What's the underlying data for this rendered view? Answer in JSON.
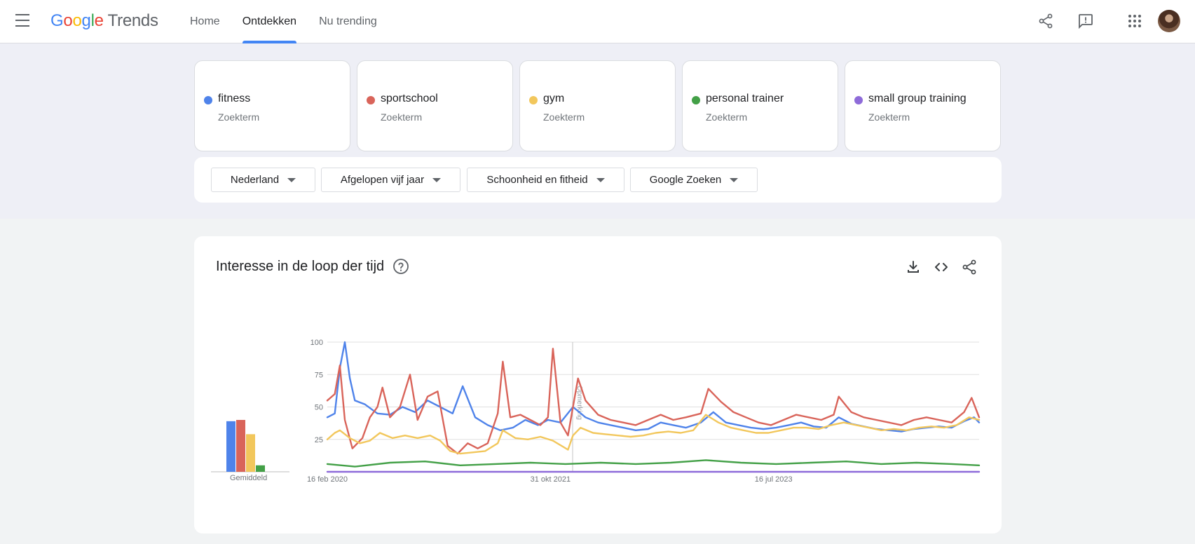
{
  "app": {
    "logo_google": [
      "G",
      "o",
      "o",
      "g",
      "l",
      "e"
    ],
    "logo_trends": "Trends"
  },
  "nav": [
    {
      "label": "Home",
      "active": false
    },
    {
      "label": "Ontdekken",
      "active": true
    },
    {
      "label": "Nu trending",
      "active": false
    }
  ],
  "terms": [
    {
      "name": "fitness",
      "type": "Zoekterm",
      "color": "#4f83ea"
    },
    {
      "name": "sportschool",
      "type": "Zoekterm",
      "color": "#d9645a"
    },
    {
      "name": "gym",
      "type": "Zoekterm",
      "color": "#f2c75c"
    },
    {
      "name": "personal trainer",
      "type": "Zoekterm",
      "color": "#43a047"
    },
    {
      "name": "small group training",
      "type": "Zoekterm",
      "color": "#8e6bd9"
    }
  ],
  "filters": [
    {
      "label": "Nederland"
    },
    {
      "label": "Afgelopen vijf jaar"
    },
    {
      "label": "Schoonheid en fitheid"
    },
    {
      "label": "Google Zoeken"
    }
  ],
  "chart_card": {
    "title": "Interesse in de loop der tijd",
    "average_label": "Gemiddeld"
  },
  "chart_data": {
    "type": "line",
    "title": "Interesse in de loop der tijd",
    "xlabel": "",
    "ylabel": "",
    "x_range": [
      "2020-02-16",
      "2025-02-09"
    ],
    "x_ticks": [
      {
        "date": "2020-02-16",
        "label": "16 feb 2020"
      },
      {
        "date": "2021-10-31",
        "label": "31 okt 2021"
      },
      {
        "date": "2023-07-16",
        "label": "16 jul 2023"
      }
    ],
    "y_ticks": [
      25,
      50,
      75,
      100
    ],
    "ylim": [
      0,
      100
    ],
    "grid": true,
    "annotation_line": {
      "date": "2022-01-01",
      "label": "Opmerking"
    },
    "series": [
      {
        "name": "fitness",
        "color": "#4f83ea",
        "average": 39,
        "points": [
          [
            "2020-02-16",
            42
          ],
          [
            "2020-03-08",
            45
          ],
          [
            "2020-03-22",
            80
          ],
          [
            "2020-04-05",
            100
          ],
          [
            "2020-04-19",
            72
          ],
          [
            "2020-05-03",
            55
          ],
          [
            "2020-05-31",
            52
          ],
          [
            "2020-07-05",
            45
          ],
          [
            "2020-08-09",
            44
          ],
          [
            "2020-09-13",
            50
          ],
          [
            "2020-10-18",
            46
          ],
          [
            "2020-11-22",
            55
          ],
          [
            "2020-12-27",
            50
          ],
          [
            "2021-01-31",
            45
          ],
          [
            "2021-02-28",
            66
          ],
          [
            "2021-04-04",
            42
          ],
          [
            "2021-05-09",
            36
          ],
          [
            "2021-06-13",
            32
          ],
          [
            "2021-07-18",
            34
          ],
          [
            "2021-08-22",
            40
          ],
          [
            "2021-09-26",
            36
          ],
          [
            "2021-10-24",
            40
          ],
          [
            "2021-11-28",
            38
          ],
          [
            "2022-01-02",
            50
          ],
          [
            "2022-02-06",
            42
          ],
          [
            "2022-03-13",
            38
          ],
          [
            "2022-04-17",
            36
          ],
          [
            "2022-05-22",
            34
          ],
          [
            "2022-06-26",
            32
          ],
          [
            "2022-07-31",
            33
          ],
          [
            "2022-09-04",
            38
          ],
          [
            "2022-10-09",
            36
          ],
          [
            "2022-11-13",
            34
          ],
          [
            "2022-12-25",
            38
          ],
          [
            "2023-01-29",
            46
          ],
          [
            "2023-03-05",
            38
          ],
          [
            "2023-04-09",
            36
          ],
          [
            "2023-05-14",
            34
          ],
          [
            "2023-06-18",
            33
          ],
          [
            "2023-07-23",
            34
          ],
          [
            "2023-08-27",
            36
          ],
          [
            "2023-10-01",
            38
          ],
          [
            "2023-11-05",
            35
          ],
          [
            "2023-12-10",
            34
          ],
          [
            "2024-01-14",
            42
          ],
          [
            "2024-02-18",
            37
          ],
          [
            "2024-03-24",
            35
          ],
          [
            "2024-04-28",
            33
          ],
          [
            "2024-06-02",
            32
          ],
          [
            "2024-07-07",
            31
          ],
          [
            "2024-08-11",
            33
          ],
          [
            "2024-09-15",
            34
          ],
          [
            "2024-10-20",
            35
          ],
          [
            "2024-11-24",
            34
          ],
          [
            "2024-12-29",
            39
          ],
          [
            "2025-01-26",
            42
          ],
          [
            "2025-02-09",
            38
          ]
        ]
      },
      {
        "name": "sportschool",
        "color": "#d9645a",
        "average": 40,
        "points": [
          [
            "2020-02-16",
            55
          ],
          [
            "2020-03-08",
            60
          ],
          [
            "2020-03-22",
            82
          ],
          [
            "2020-04-05",
            40
          ],
          [
            "2020-04-26",
            18
          ],
          [
            "2020-05-24",
            26
          ],
          [
            "2020-06-14",
            42
          ],
          [
            "2020-07-05",
            50
          ],
          [
            "2020-07-19",
            65
          ],
          [
            "2020-08-09",
            42
          ],
          [
            "2020-09-06",
            50
          ],
          [
            "2020-10-04",
            75
          ],
          [
            "2020-10-25",
            40
          ],
          [
            "2020-11-22",
            58
          ],
          [
            "2020-12-20",
            62
          ],
          [
            "2021-01-17",
            20
          ],
          [
            "2021-02-14",
            14
          ],
          [
            "2021-03-14",
            22
          ],
          [
            "2021-04-11",
            18
          ],
          [
            "2021-05-09",
            22
          ],
          [
            "2021-06-06",
            45
          ],
          [
            "2021-06-20",
            85
          ],
          [
            "2021-07-11",
            42
          ],
          [
            "2021-08-08",
            44
          ],
          [
            "2021-09-05",
            40
          ],
          [
            "2021-10-03",
            36
          ],
          [
            "2021-10-24",
            42
          ],
          [
            "2021-11-07",
            95
          ],
          [
            "2021-11-28",
            38
          ],
          [
            "2021-12-19",
            28
          ],
          [
            "2022-01-02",
            50
          ],
          [
            "2022-01-16",
            72
          ],
          [
            "2022-02-06",
            55
          ],
          [
            "2022-03-13",
            44
          ],
          [
            "2022-04-17",
            40
          ],
          [
            "2022-05-22",
            38
          ],
          [
            "2022-06-26",
            36
          ],
          [
            "2022-07-31",
            40
          ],
          [
            "2022-09-04",
            44
          ],
          [
            "2022-10-09",
            40
          ],
          [
            "2022-11-13",
            42
          ],
          [
            "2022-12-25",
            45
          ],
          [
            "2023-01-15",
            64
          ],
          [
            "2023-02-19",
            54
          ],
          [
            "2023-03-26",
            46
          ],
          [
            "2023-04-30",
            42
          ],
          [
            "2023-06-04",
            38
          ],
          [
            "2023-07-09",
            36
          ],
          [
            "2023-08-13",
            40
          ],
          [
            "2023-09-17",
            44
          ],
          [
            "2023-10-22",
            42
          ],
          [
            "2023-11-26",
            40
          ],
          [
            "2023-12-31",
            44
          ],
          [
            "2024-01-14",
            58
          ],
          [
            "2024-02-18",
            46
          ],
          [
            "2024-03-24",
            42
          ],
          [
            "2024-04-28",
            40
          ],
          [
            "2024-06-02",
            38
          ],
          [
            "2024-07-07",
            36
          ],
          [
            "2024-08-11",
            40
          ],
          [
            "2024-09-15",
            42
          ],
          [
            "2024-10-20",
            40
          ],
          [
            "2024-11-24",
            38
          ],
          [
            "2024-12-29",
            46
          ],
          [
            "2025-01-19",
            57
          ],
          [
            "2025-02-09",
            42
          ]
        ]
      },
      {
        "name": "gym",
        "color": "#f2c75c",
        "average": 29,
        "points": [
          [
            "2020-02-16",
            25
          ],
          [
            "2020-03-08",
            30
          ],
          [
            "2020-03-22",
            32
          ],
          [
            "2020-04-19",
            26
          ],
          [
            "2020-05-17",
            22
          ],
          [
            "2020-06-14",
            24
          ],
          [
            "2020-07-12",
            30
          ],
          [
            "2020-08-16",
            26
          ],
          [
            "2020-09-20",
            28
          ],
          [
            "2020-10-25",
            26
          ],
          [
            "2020-11-29",
            28
          ],
          [
            "2020-12-27",
            24
          ],
          [
            "2021-01-24",
            16
          ],
          [
            "2021-02-21",
            14
          ],
          [
            "2021-03-28",
            15
          ],
          [
            "2021-05-02",
            16
          ],
          [
            "2021-06-06",
            22
          ],
          [
            "2021-06-20",
            32
          ],
          [
            "2021-07-25",
            26
          ],
          [
            "2021-08-29",
            25
          ],
          [
            "2021-10-03",
            27
          ],
          [
            "2021-11-07",
            24
          ],
          [
            "2021-12-19",
            17
          ],
          [
            "2022-01-02",
            28
          ],
          [
            "2022-01-23",
            34
          ],
          [
            "2022-02-27",
            30
          ],
          [
            "2022-04-03",
            29
          ],
          [
            "2022-05-08",
            28
          ],
          [
            "2022-06-12",
            27
          ],
          [
            "2022-07-17",
            28
          ],
          [
            "2022-08-21",
            30
          ],
          [
            "2022-09-25",
            31
          ],
          [
            "2022-10-30",
            30
          ],
          [
            "2022-12-04",
            32
          ],
          [
            "2023-01-08",
            44
          ],
          [
            "2023-02-12",
            38
          ],
          [
            "2023-03-19",
            34
          ],
          [
            "2023-04-23",
            32
          ],
          [
            "2023-05-28",
            30
          ],
          [
            "2023-07-02",
            30
          ],
          [
            "2023-08-06",
            32
          ],
          [
            "2023-09-10",
            34
          ],
          [
            "2023-10-15",
            34
          ],
          [
            "2023-11-19",
            33
          ],
          [
            "2023-12-24",
            36
          ],
          [
            "2024-01-28",
            38
          ],
          [
            "2024-03-03",
            36
          ],
          [
            "2024-04-07",
            34
          ],
          [
            "2024-05-12",
            32
          ],
          [
            "2024-06-16",
            33
          ],
          [
            "2024-07-21",
            32
          ],
          [
            "2024-08-25",
            34
          ],
          [
            "2024-09-29",
            35
          ],
          [
            "2024-11-03",
            34
          ],
          [
            "2024-12-08",
            36
          ],
          [
            "2025-01-12",
            42
          ],
          [
            "2025-02-09",
            40
          ]
        ]
      },
      {
        "name": "personal trainer",
        "color": "#43a047",
        "average": 5,
        "points": [
          [
            "2020-02-16",
            6
          ],
          [
            "2020-05-03",
            4
          ],
          [
            "2020-08-09",
            7
          ],
          [
            "2020-11-15",
            8
          ],
          [
            "2021-02-21",
            5
          ],
          [
            "2021-05-30",
            6
          ],
          [
            "2021-09-05",
            7
          ],
          [
            "2021-12-12",
            6
          ],
          [
            "2022-03-20",
            7
          ],
          [
            "2022-06-26",
            6
          ],
          [
            "2022-10-02",
            7
          ],
          [
            "2023-01-08",
            9
          ],
          [
            "2023-04-16",
            7
          ],
          [
            "2023-07-23",
            6
          ],
          [
            "2023-10-29",
            7
          ],
          [
            "2024-02-04",
            8
          ],
          [
            "2024-05-12",
            6
          ],
          [
            "2024-08-18",
            7
          ],
          [
            "2024-11-24",
            6
          ],
          [
            "2025-02-09",
            5
          ]
        ]
      },
      {
        "name": "small group training",
        "color": "#8e6bd9",
        "average": 0,
        "points": [
          [
            "2020-02-16",
            0
          ],
          [
            "2025-02-09",
            0
          ]
        ]
      }
    ]
  }
}
